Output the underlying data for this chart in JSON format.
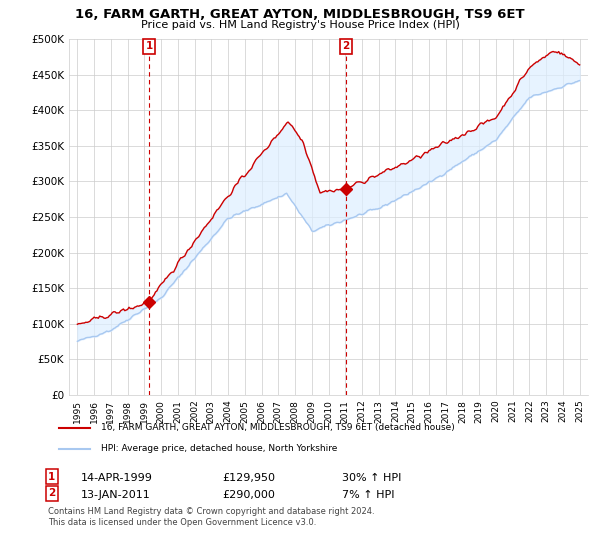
{
  "title": "16, FARM GARTH, GREAT AYTON, MIDDLESBROUGH, TS9 6ET",
  "subtitle": "Price paid vs. HM Land Registry's House Price Index (HPI)",
  "ylabel_ticks": [
    "£0",
    "£50K",
    "£100K",
    "£150K",
    "£200K",
    "£250K",
    "£300K",
    "£350K",
    "£400K",
    "£450K",
    "£500K"
  ],
  "ytick_values": [
    0,
    50000,
    100000,
    150000,
    200000,
    250000,
    300000,
    350000,
    400000,
    450000,
    500000
  ],
  "ylim": [
    0,
    500000
  ],
  "xlim_start": 1994.5,
  "xlim_end": 2025.5,
  "transaction1": {
    "date": 1999.28,
    "price": 129950,
    "label": "1",
    "hpi_rel": "30% ↑ HPI",
    "date_str": "14-APR-1999"
  },
  "transaction2": {
    "date": 2011.04,
    "price": 290000,
    "label": "2",
    "hpi_rel": "7% ↑ HPI",
    "date_str": "13-JAN-2011"
  },
  "hpi_color": "#a8c8f0",
  "hpi_fill_color": "#ddeeff",
  "property_color": "#cc0000",
  "legend_property_label": "16, FARM GARTH, GREAT AYTON, MIDDLESBROUGH, TS9 6ET (detached house)",
  "legend_hpi_label": "HPI: Average price, detached house, North Yorkshire",
  "footnote1": "Contains HM Land Registry data © Crown copyright and database right 2024.",
  "footnote2": "This data is licensed under the Open Government Licence v3.0.",
  "background_color": "#ffffff",
  "grid_color": "#cccccc"
}
